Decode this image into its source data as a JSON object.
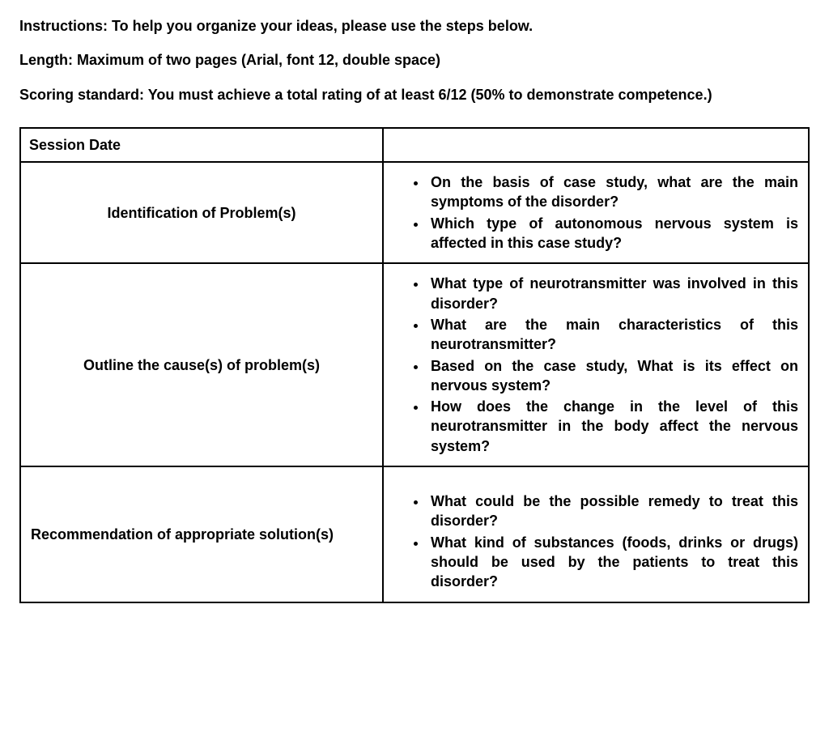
{
  "header": {
    "instructions_label": "Instructions:",
    "instructions_text": " To help you organize your ideas, please use the steps below.",
    "length_label": "Length:",
    "length_text": " Maximum of two pages (Arial, font 12, double space)",
    "scoring_label": "Scoring standard:",
    "scoring_text": " You must achieve a total rating of at least 6/12 (50% to demonstrate competence.)"
  },
  "table": {
    "rows": [
      {
        "left": "Session Date",
        "bullets": []
      },
      {
        "left": "Identification of Problem(s)",
        "bullets": [
          "On the basis of case study, what are the main symptoms of the disorder?",
          "Which type of autonomous nervous system is affected in this case study?"
        ]
      },
      {
        "left": "Outline the cause(s) of problem(s)",
        "bullets": [
          "What type of neurotransmitter was involved in this disorder?",
          "What are the main characteristics of this neurotransmitter?",
          "Based on the case study, What is its effect on nervous system?",
          "How does the change in the level of this neurotransmitter in the body affect the nervous system?"
        ]
      },
      {
        "left": "Recommendation of appropriate solution(s)",
        "bullets": [
          "What could be the possible remedy to treat this disorder?",
          "What kind of substances (foods, drinks or drugs) should be used by the patients to treat this disorder?"
        ]
      }
    ]
  }
}
